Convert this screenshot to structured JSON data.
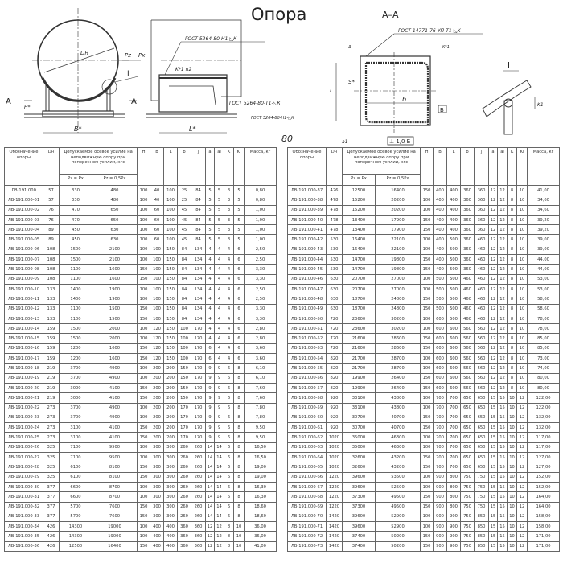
{
  "drawing": {
    "title": "Опора",
    "section_label": "А–А",
    "detail_label": "I",
    "section_marks": [
      "A",
      "A"
    ],
    "labels": {
      "dn": "Dн",
      "pz": "Pz",
      "px": "Px",
      "h": "H*",
      "b_star": "B*",
      "l_star": "L*",
      "k1n2": "K*1 n2",
      "a": "a",
      "s": "S*",
      "b": "b",
      "l": "l",
      "datum": "Б",
      "tolerance": "⊥ 1,0 Б",
      "a1": "a1",
      "k1_detail": "K1",
      "k1_section": "K*1"
    },
    "weld_notes": [
      "ГОСТ 5264-80-Н1-◺К",
      "ГОСТ 5264-80-Т1-◺К",
      "ГОСТ 5264-80-Н1-◺К",
      "ГОСТ 14771-76-УП-Т1-◺К"
    ],
    "handwritten": "80"
  },
  "table": {
    "headers": {
      "designation": "Обозначение опоры",
      "dn": "Dн",
      "force_group": "Допускаемое осевое усилие на неподвижную опору при поперечном усилии, кгс",
      "pz_eq_px": "Pz = Px",
      "pz_half_px": "Pz = 0,5Px",
      "H": "H",
      "B": "B",
      "L": "L",
      "b": "b",
      "j": "j",
      "a": "a",
      "a1": "al",
      "K": "K",
      "K1": "Kl",
      "mass": "Масса, кг"
    },
    "left_rows": [
      [
        "ЛВ-191.000",
        "57",
        "330",
        "480",
        "100",
        "40",
        "100",
        "25",
        "84",
        "5",
        "5",
        "3",
        "5",
        "0,80"
      ],
      [
        "ЛВ-191.000-01",
        "57",
        "330",
        "480",
        "100",
        "40",
        "100",
        "25",
        "84",
        "5",
        "5",
        "3",
        "5",
        "0,80"
      ],
      [
        "ЛВ-191.000-02",
        "76",
        "470",
        "650",
        "100",
        "60",
        "100",
        "45",
        "84",
        "5",
        "5",
        "3",
        "5",
        "1,00"
      ],
      [
        "ЛВ-191.000-03",
        "76",
        "470",
        "650",
        "100",
        "60",
        "100",
        "45",
        "84",
        "5",
        "5",
        "3",
        "5",
        "1,00"
      ],
      [
        "ЛВ-191.000-04",
        "89",
        "450",
        "630",
        "100",
        "60",
        "100",
        "45",
        "84",
        "5",
        "5",
        "3",
        "5",
        "1,00"
      ],
      [
        "ЛВ-191.000-05",
        "89",
        "450",
        "630",
        "100",
        "60",
        "100",
        "45",
        "84",
        "5",
        "5",
        "3",
        "5",
        "1,00"
      ],
      [
        "ЛВ-191.000-06",
        "108",
        "1500",
        "2100",
        "100",
        "100",
        "150",
        "84",
        "134",
        "4",
        "4",
        "4",
        "6",
        "2,50"
      ],
      [
        "ЛВ-191.000-07",
        "108",
        "1500",
        "2100",
        "100",
        "100",
        "150",
        "84",
        "134",
        "4",
        "4",
        "4",
        "6",
        "2,50"
      ],
      [
        "ЛВ-191.000-08",
        "108",
        "1100",
        "1600",
        "150",
        "100",
        "150",
        "84",
        "134",
        "4",
        "4",
        "4",
        "6",
        "3,30"
      ],
      [
        "ЛВ-191.000-09",
        "108",
        "1100",
        "1600",
        "150",
        "100",
        "150",
        "84",
        "134",
        "4",
        "4",
        "4",
        "6",
        "3,30"
      ],
      [
        "ЛВ-191.000-10",
        "133",
        "1400",
        "1900",
        "100",
        "100",
        "150",
        "84",
        "134",
        "4",
        "4",
        "4",
        "6",
        "2,50"
      ],
      [
        "ЛВ-191.000-11",
        "133",
        "1400",
        "1900",
        "100",
        "100",
        "150",
        "84",
        "134",
        "4",
        "4",
        "4",
        "6",
        "2,50"
      ],
      [
        "ЛВ-191.000-12",
        "133",
        "1100",
        "1500",
        "150",
        "100",
        "150",
        "84",
        "134",
        "4",
        "4",
        "4",
        "6",
        "3,30"
      ],
      [
        "ЛВ-191.000-13",
        "133",
        "1100",
        "1500",
        "150",
        "100",
        "150",
        "84",
        "134",
        "4",
        "4",
        "4",
        "6",
        "3,30"
      ],
      [
        "ЛВ-191.000-14",
        "159",
        "1500",
        "2000",
        "100",
        "120",
        "150",
        "100",
        "170",
        "4",
        "4",
        "4",
        "6",
        "2,80"
      ],
      [
        "ЛВ-191.000-15",
        "159",
        "1500",
        "2000",
        "100",
        "120",
        "150",
        "100",
        "170",
        "4",
        "4",
        "4",
        "6",
        "2,80"
      ],
      [
        "ЛВ-191.000-16",
        "159",
        "1200",
        "1600",
        "150",
        "120",
        "150",
        "100",
        "170",
        "6",
        "4",
        "4",
        "6",
        "3,60"
      ],
      [
        "ЛВ-191.000-17",
        "159",
        "1200",
        "1600",
        "150",
        "120",
        "150",
        "100",
        "170",
        "6",
        "4",
        "4",
        "6",
        "3,60"
      ],
      [
        "ЛВ-191.000-18",
        "219",
        "3700",
        "4900",
        "100",
        "200",
        "200",
        "150",
        "170",
        "9",
        "9",
        "6",
        "8",
        "6,10"
      ],
      [
        "ЛВ-191.000-19",
        "219",
        "3700",
        "4900",
        "100",
        "200",
        "200",
        "150",
        "170",
        "9",
        "9",
        "6",
        "8",
        "6,10"
      ],
      [
        "ЛВ-191.000-20",
        "219",
        "3000",
        "4100",
        "150",
        "200",
        "200",
        "150",
        "170",
        "9",
        "9",
        "6",
        "8",
        "7,60"
      ],
      [
        "ЛВ-191.000-21",
        "219",
        "3000",
        "4100",
        "150",
        "200",
        "200",
        "150",
        "170",
        "9",
        "9",
        "6",
        "8",
        "7,60"
      ],
      [
        "ЛВ-191.000-22",
        "273",
        "3700",
        "4900",
        "100",
        "200",
        "200",
        "170",
        "170",
        "9",
        "9",
        "6",
        "8",
        "7,80"
      ],
      [
        "ЛВ-191.000-23",
        "273",
        "3700",
        "4900",
        "100",
        "200",
        "200",
        "170",
        "170",
        "9",
        "9",
        "6",
        "8",
        "7,80"
      ],
      [
        "ЛВ-191.000-24",
        "273",
        "3100",
        "4100",
        "150",
        "200",
        "200",
        "170",
        "170",
        "9",
        "9",
        "6",
        "8",
        "9,50"
      ],
      [
        "ЛВ-191.000-25",
        "273",
        "3100",
        "4100",
        "150",
        "200",
        "200",
        "170",
        "170",
        "9",
        "9",
        "6",
        "8",
        "9,50"
      ],
      [
        "ЛВ-191.000-26",
        "325",
        "7100",
        "9500",
        "100",
        "300",
        "300",
        "260",
        "260",
        "14",
        "14",
        "6",
        "8",
        "16,50"
      ],
      [
        "ЛВ-191.000-27",
        "325",
        "7100",
        "9500",
        "100",
        "300",
        "300",
        "260",
        "260",
        "14",
        "14",
        "6",
        "8",
        "16,50"
      ],
      [
        "ЛВ-191.000-28",
        "325",
        "6100",
        "8100",
        "150",
        "300",
        "300",
        "260",
        "260",
        "14",
        "14",
        "6",
        "8",
        "19,00"
      ],
      [
        "ЛВ-191.000-29",
        "325",
        "6100",
        "8100",
        "150",
        "300",
        "300",
        "260",
        "260",
        "14",
        "14",
        "6",
        "8",
        "19,00"
      ],
      [
        "ЛВ-191.000-30",
        "377",
        "6600",
        "8700",
        "100",
        "300",
        "300",
        "260",
        "260",
        "14",
        "14",
        "6",
        "8",
        "16,30"
      ],
      [
        "ЛВ-191.000-31",
        "377",
        "6600",
        "8700",
        "100",
        "300",
        "300",
        "260",
        "260",
        "14",
        "14",
        "6",
        "8",
        "16,30"
      ],
      [
        "ЛВ-191.000-32",
        "377",
        "5700",
        "7600",
        "150",
        "300",
        "300",
        "260",
        "260",
        "14",
        "14",
        "6",
        "8",
        "18,60"
      ],
      [
        "ЛВ-191.000-33",
        "377",
        "5700",
        "7600",
        "150",
        "300",
        "300",
        "260",
        "260",
        "14",
        "14",
        "6",
        "8",
        "18,60"
      ],
      [
        "ЛВ-191.000-34",
        "426",
        "14300",
        "19000",
        "100",
        "400",
        "400",
        "360",
        "360",
        "12",
        "12",
        "8",
        "10",
        "36,00"
      ],
      [
        "ЛВ-191.000-35",
        "426",
        "14300",
        "19000",
        "100",
        "400",
        "400",
        "360",
        "360",
        "12",
        "12",
        "8",
        "10",
        "36,00"
      ],
      [
        "ЛВ-191.000-36",
        "426",
        "12500",
        "16400",
        "150",
        "400",
        "400",
        "360",
        "360",
        "12",
        "12",
        "8",
        "10",
        "41,00"
      ]
    ],
    "right_rows": [
      [
        "ЛВ-191.000-37",
        "426",
        "12500",
        "16400",
        "150",
        "400",
        "400",
        "360",
        "360",
        "12",
        "12",
        "8",
        "10",
        "41,00"
      ],
      [
        "ЛВ-191.000-38",
        "478",
        "15200",
        "20200",
        "100",
        "400",
        "400",
        "360",
        "360",
        "12",
        "12",
        "8",
        "10",
        "34,60"
      ],
      [
        "ЛВ-191.000-39",
        "478",
        "15200",
        "20200",
        "100",
        "400",
        "400",
        "360",
        "360",
        "12",
        "12",
        "8",
        "10",
        "34,60"
      ],
      [
        "ЛВ-191.000-40",
        "478",
        "13400",
        "17900",
        "150",
        "400",
        "400",
        "360",
        "360",
        "12",
        "12",
        "8",
        "10",
        "39,20"
      ],
      [
        "ЛВ-191.000-41",
        "478",
        "13400",
        "17900",
        "150",
        "400",
        "400",
        "360",
        "360",
        "12",
        "12",
        "8",
        "10",
        "39,20"
      ],
      [
        "ЛВ-191.000-42",
        "530",
        "16400",
        "22100",
        "100",
        "400",
        "500",
        "360",
        "460",
        "12",
        "12",
        "8",
        "10",
        "39,00"
      ],
      [
        "ЛВ-191.000-43",
        "530",
        "16400",
        "22100",
        "100",
        "400",
        "500",
        "360",
        "460",
        "12",
        "12",
        "8",
        "10",
        "39,00"
      ],
      [
        "ЛВ-191.000-44",
        "530",
        "14700",
        "19800",
        "150",
        "400",
        "500",
        "360",
        "460",
        "12",
        "12",
        "8",
        "10",
        "44,00"
      ],
      [
        "ЛВ-191.000-45",
        "530",
        "14700",
        "19800",
        "150",
        "400",
        "500",
        "360",
        "460",
        "12",
        "12",
        "8",
        "10",
        "44,00"
      ],
      [
        "ЛВ-191.000-46",
        "630",
        "20700",
        "27000",
        "100",
        "500",
        "500",
        "460",
        "460",
        "12",
        "12",
        "8",
        "10",
        "53,00"
      ],
      [
        "ЛВ-191.000-47",
        "630",
        "20700",
        "27000",
        "100",
        "500",
        "500",
        "460",
        "460",
        "12",
        "12",
        "8",
        "10",
        "53,00"
      ],
      [
        "ЛВ-191.000-48",
        "630",
        "18700",
        "24800",
        "150",
        "500",
        "500",
        "460",
        "460",
        "12",
        "12",
        "8",
        "10",
        "58,60"
      ],
      [
        "ЛВ-191.000-49",
        "630",
        "18700",
        "24800",
        "150",
        "500",
        "500",
        "460",
        "460",
        "12",
        "12",
        "8",
        "10",
        "58,60"
      ],
      [
        "ЛВ-191.000-50",
        "720",
        "23600",
        "30200",
        "100",
        "600",
        "500",
        "460",
        "460",
        "12",
        "12",
        "8",
        "10",
        "78,00"
      ],
      [
        "ЛВ-191.000-51",
        "720",
        "23600",
        "30200",
        "100",
        "600",
        "600",
        "560",
        "560",
        "12",
        "12",
        "8",
        "10",
        "78,00"
      ],
      [
        "ЛВ-191.000-52",
        "720",
        "21600",
        "28600",
        "150",
        "600",
        "600",
        "560",
        "560",
        "12",
        "12",
        "8",
        "10",
        "85,00"
      ],
      [
        "ЛВ-191.000-53",
        "720",
        "21600",
        "28600",
        "150",
        "600",
        "600",
        "560",
        "560",
        "12",
        "12",
        "8",
        "10",
        "85,00"
      ],
      [
        "ЛВ-191.000-54",
        "820",
        "21700",
        "28700",
        "100",
        "600",
        "600",
        "560",
        "560",
        "12",
        "12",
        "8",
        "10",
        "73,00"
      ],
      [
        "ЛВ-191.000-55",
        "820",
        "21700",
        "28700",
        "100",
        "600",
        "600",
        "560",
        "560",
        "12",
        "12",
        "8",
        "10",
        "74,00"
      ],
      [
        "ЛВ-191.000-56",
        "820",
        "19900",
        "26400",
        "150",
        "600",
        "600",
        "560",
        "560",
        "12",
        "12",
        "8",
        "10",
        "80,00"
      ],
      [
        "ЛВ-191.000-57",
        "820",
        "19900",
        "26400",
        "150",
        "600",
        "600",
        "560",
        "560",
        "12",
        "12",
        "8",
        "10",
        "80,00"
      ],
      [
        "ЛВ-191.000-58",
        "920",
        "33100",
        "43800",
        "100",
        "700",
        "700",
        "650",
        "650",
        "15",
        "15",
        "10",
        "12",
        "122,00"
      ],
      [
        "ЛВ-191.000-59",
        "920",
        "33100",
        "43800",
        "100",
        "700",
        "700",
        "650",
        "650",
        "15",
        "15",
        "10",
        "12",
        "122,00"
      ],
      [
        "ЛВ-191.000-60",
        "920",
        "30700",
        "40700",
        "150",
        "700",
        "700",
        "650",
        "650",
        "15",
        "15",
        "10",
        "12",
        "132,00"
      ],
      [
        "ЛВ-191.000-61",
        "920",
        "30700",
        "40700",
        "150",
        "700",
        "700",
        "650",
        "650",
        "15",
        "15",
        "10",
        "12",
        "132,00"
      ],
      [
        "ЛВ-191.000-62",
        "1020",
        "35000",
        "46300",
        "100",
        "700",
        "700",
        "650",
        "650",
        "15",
        "15",
        "10",
        "12",
        "117,00"
      ],
      [
        "ЛВ-191.000-63",
        "1020",
        "35000",
        "46300",
        "100",
        "700",
        "700",
        "650",
        "650",
        "15",
        "15",
        "10",
        "12",
        "117,00"
      ],
      [
        "ЛВ-191.000-64",
        "1020",
        "32600",
        "43200",
        "150",
        "700",
        "700",
        "650",
        "650",
        "15",
        "15",
        "10",
        "12",
        "127,00"
      ],
      [
        "ЛВ-191.000-65",
        "1020",
        "32600",
        "43200",
        "150",
        "700",
        "700",
        "650",
        "650",
        "15",
        "15",
        "10",
        "12",
        "127,00"
      ],
      [
        "ЛВ-191.000-66",
        "1220",
        "39600",
        "53500",
        "100",
        "900",
        "800",
        "750",
        "750",
        "15",
        "15",
        "10",
        "12",
        "152,00"
      ],
      [
        "ЛВ-191.000-67",
        "1220",
        "39600",
        "52500",
        "100",
        "900",
        "800",
        "750",
        "750",
        "15",
        "15",
        "10",
        "12",
        "152,00"
      ],
      [
        "ЛВ-191.000-68",
        "1220",
        "37300",
        "49500",
        "150",
        "900",
        "800",
        "750",
        "750",
        "15",
        "15",
        "10",
        "12",
        "164,00"
      ],
      [
        "ЛВ-191.000-69",
        "1220",
        "37300",
        "49500",
        "150",
        "900",
        "800",
        "750",
        "750",
        "15",
        "15",
        "10",
        "12",
        "164,00"
      ],
      [
        "ЛВ-191.000-70",
        "1420",
        "39600",
        "52900",
        "100",
        "900",
        "900",
        "750",
        "850",
        "15",
        "15",
        "10",
        "12",
        "158,00"
      ],
      [
        "ЛВ-191.000-71",
        "1420",
        "39600",
        "52900",
        "100",
        "900",
        "900",
        "750",
        "850",
        "15",
        "15",
        "10",
        "12",
        "158,00"
      ],
      [
        "ЛВ-191.000-72",
        "1420",
        "37400",
        "50200",
        "150",
        "900",
        "900",
        "750",
        "850",
        "15",
        "15",
        "10",
        "12",
        "171,00"
      ],
      [
        "ЛВ-191.000-73",
        "1420",
        "37400",
        "50200",
        "150",
        "900",
        "900",
        "750",
        "850",
        "15",
        "15",
        "10",
        "12",
        "171,00"
      ]
    ]
  }
}
